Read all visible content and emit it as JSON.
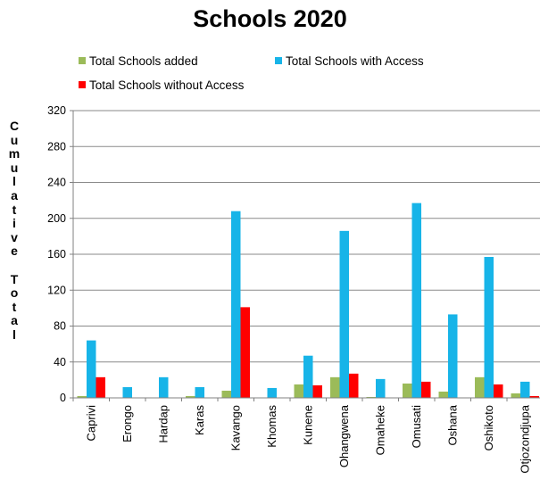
{
  "chart_data": {
    "type": "bar",
    "title": "Schools 2020",
    "ylabel": "Cumulative Total",
    "ylabel_vertical": "C\nu\nm\nu\nl\na\nt\ni\nv\ne\n\nT\no\nt\na\nl",
    "xlabel": "",
    "ylim": [
      0,
      320
    ],
    "yticks": [
      0,
      40,
      80,
      120,
      160,
      200,
      240,
      280,
      320
    ],
    "grid": "horizontal",
    "legend_position": "top",
    "categories": [
      "Caprivi",
      "Erongo",
      "Hardap",
      "Karas",
      "Kavango",
      "Khomas",
      "Kunene",
      "Ohangwena",
      "Omaheke",
      "Omusati",
      "Oshana",
      "Oshikoto",
      "Otjozondjupa"
    ],
    "series": [
      {
        "name": "Total Schools added",
        "color": "#9bbb59",
        "values": [
          2,
          0,
          0,
          2,
          8,
          0,
          15,
          23,
          1,
          16,
          7,
          23,
          5
        ]
      },
      {
        "name": "Total Schools with Access",
        "color": "#17b4e8",
        "values": [
          64,
          12,
          23,
          12,
          208,
          11,
          47,
          186,
          21,
          217,
          93,
          157,
          18
        ]
      },
      {
        "name": "Total Schools without Access",
        "color": "#ff0000",
        "values": [
          23,
          0,
          0,
          0,
          101,
          0,
          14,
          27,
          0,
          18,
          0,
          15,
          2
        ]
      }
    ]
  }
}
